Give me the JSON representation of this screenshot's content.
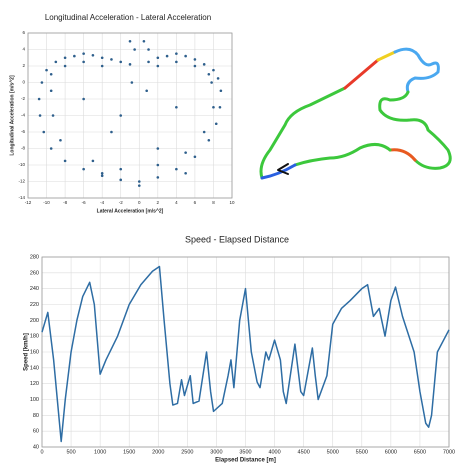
{
  "chart_data": [
    {
      "type": "scatter",
      "title": "Longitudinal Acceleration - Lateral Acceleration",
      "x_label": "Lateral Acceleration [m/s^2]",
      "y_label": "Longitudinal Acceleration [m/s^2]",
      "color": "#2e5f8c",
      "grid": true,
      "xlim": [
        -12,
        10
      ],
      "xticks": [
        -12,
        -10,
        -8,
        -6,
        -4,
        -2,
        0,
        2,
        4,
        6,
        8,
        10
      ],
      "ylim": [
        -14,
        6
      ],
      "yticks": [
        -14,
        -12,
        -10,
        -8,
        -6,
        -4,
        -2,
        0,
        2,
        4,
        6
      ],
      "x": [
        -10,
        -9,
        -8,
        -7,
        -6,
        -5,
        -4,
        -3,
        -2,
        -1,
        1,
        2,
        3,
        4,
        5,
        6,
        7,
        8,
        -9.5,
        -8,
        -6,
        -4,
        2,
        4,
        6,
        7.5,
        -10.5,
        -10.8,
        -10.7,
        -10.3,
        -9.5,
        -8,
        -6,
        -4,
        -2,
        0,
        2,
        4,
        6,
        7.5,
        8.3,
        8.7,
        8.8,
        8.5,
        -9.5,
        -9.3,
        -8.5,
        -5,
        -2,
        2,
        5,
        7,
        8,
        7.8,
        -1,
        -0.5,
        0.5,
        1,
        -0.8,
        0.8,
        0,
        -3,
        -6,
        4,
        -2,
        2,
        -4,
        5
      ],
      "values": [
        1.5,
        2.5,
        3,
        3.2,
        3.5,
        3.3,
        3,
        2.8,
        2.5,
        2.2,
        2.5,
        3,
        3.2,
        3.5,
        3.2,
        2.8,
        2.2,
        1.5,
        1,
        2,
        2.5,
        2,
        2,
        2.5,
        2,
        1,
        0,
        -2,
        -4,
        -6,
        -8,
        -9.5,
        -10.5,
        -11.3,
        -11.8,
        -12,
        -11.5,
        -10.5,
        -9,
        -7,
        -5,
        -3,
        -1,
        0.5,
        -1,
        -4,
        -7,
        -9.5,
        -10.5,
        -10,
        -8.5,
        -6,
        -3,
        0,
        5,
        4,
        5,
        4,
        0,
        -1,
        -12.5,
        -6,
        -2,
        -3,
        -4,
        -8,
        -11,
        -11
      ]
    },
    {
      "type": "line",
      "title": "Speed - Elapsed Distance",
      "x_label": "Elapsed Distance [m]",
      "y_label": "Speed [km/h]",
      "color": "#2e6da4",
      "grid": true,
      "xlim": [
        0,
        7000
      ],
      "xticks": [
        0,
        500,
        1000,
        1500,
        2000,
        2500,
        3000,
        3500,
        4000,
        4500,
        5000,
        5500,
        6000,
        6500,
        7000
      ],
      "ylim": [
        40,
        280
      ],
      "yticks": [
        40,
        60,
        80,
        100,
        120,
        140,
        160,
        180,
        200,
        220,
        240,
        260,
        280
      ],
      "x": [
        0,
        100,
        200,
        330,
        400,
        500,
        600,
        700,
        820,
        900,
        1000,
        1100,
        1300,
        1500,
        1700,
        1900,
        2020,
        2100,
        2200,
        2250,
        2330,
        2400,
        2450,
        2550,
        2600,
        2700,
        2830,
        2900,
        2950,
        3100,
        3200,
        3250,
        3300,
        3400,
        3500,
        3600,
        3700,
        3750,
        3850,
        3900,
        4000,
        4100,
        4150,
        4200,
        4350,
        4450,
        4500,
        4650,
        4700,
        4750,
        4900,
        5000,
        5150,
        5300,
        5500,
        5600,
        5700,
        5800,
        5900,
        6000,
        6080,
        6200,
        6400,
        6500,
        6600,
        6650,
        6700,
        6800,
        7000
      ],
      "values": [
        185,
        210,
        150,
        47,
        100,
        160,
        200,
        230,
        248,
        220,
        132,
        150,
        180,
        220,
        245,
        262,
        268,
        200,
        120,
        93,
        95,
        125,
        105,
        130,
        95,
        98,
        160,
        110,
        85,
        95,
        130,
        150,
        115,
        200,
        240,
        160,
        122,
        115,
        160,
        150,
        175,
        150,
        110,
        95,
        170,
        110,
        105,
        165,
        130,
        100,
        130,
        195,
        215,
        225,
        240,
        245,
        205,
        215,
        180,
        225,
        242,
        205,
        160,
        110,
        70,
        65,
        80,
        160,
        188
      ]
    }
  ]
}
